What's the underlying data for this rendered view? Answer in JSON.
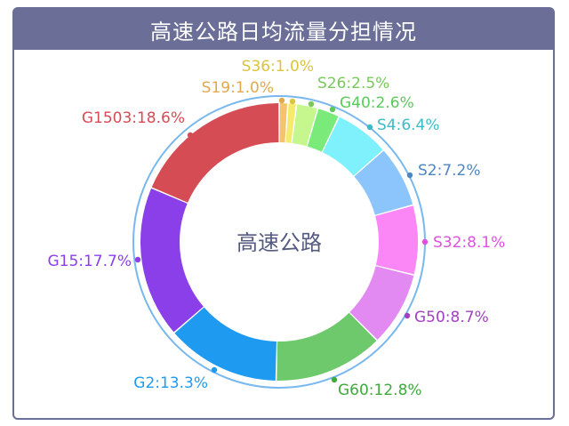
{
  "chart_data": {
    "type": "pie",
    "title": "高速公路日均流量分担情况",
    "center_label": "高速公路",
    "series": [
      {
        "name": "G1503",
        "value": 18.6,
        "label": "G1503:18.6%",
        "color": "#d64c55"
      },
      {
        "name": "G15",
        "value": 17.7,
        "label": "G15:17.7%",
        "color": "#8a3fe8"
      },
      {
        "name": "G2",
        "value": 13.3,
        "label": "G2:13.3%",
        "color": "#1e9bf0"
      },
      {
        "name": "G60",
        "value": 12.8,
        "label": "G60:12.8%",
        "color": "#6ec96c"
      },
      {
        "name": "G50",
        "value": 8.7,
        "label": "G50:8.7%",
        "color": "#e28af2"
      },
      {
        "name": "S32",
        "value": 8.1,
        "label": "S32:8.1%",
        "color": "#fb86f6"
      },
      {
        "name": "S2",
        "value": 7.2,
        "label": "S2:7.2%",
        "color": "#8cc5fb"
      },
      {
        "name": "S4",
        "value": 6.4,
        "label": "S4:6.4%",
        "color": "#7ef1fc"
      },
      {
        "name": "G40",
        "value": 2.6,
        "label": "G40:2.6%",
        "color": "#7aeb7a"
      },
      {
        "name": "S26",
        "value": 2.5,
        "label": "S26:2.5%",
        "color": "#c6f78e"
      },
      {
        "name": "S36",
        "value": 1.0,
        "label": "S36:1.0%",
        "color": "#f6ea6c"
      },
      {
        "name": "S19",
        "value": 1.0,
        "label": "S19:1.0%",
        "color": "#f4c36a"
      }
    ],
    "label_colors": {
      "G1503": "#d64c55",
      "G15": "#8a3fe8",
      "G2": "#1e9bf0",
      "G60": "#3faa3c",
      "G50": "#a43fc2",
      "S32": "#e24fe0",
      "S2": "#4d86c1",
      "S4": "#3bbcc6",
      "G40": "#5cc95c",
      "S26": "#78c95a",
      "S36": "#d9c43f",
      "S19": "#e2a84b"
    },
    "outer_ring_color": "#78b8ee"
  }
}
